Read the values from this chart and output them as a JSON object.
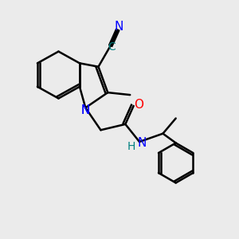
{
  "bg_color": "#ebebeb",
  "bond_color": "#000000",
  "bond_width": 1.8,
  "atom_colors": {
    "N": "#0000ff",
    "O": "#ff0000",
    "C_cyan": "#008080",
    "H": "#008080"
  }
}
